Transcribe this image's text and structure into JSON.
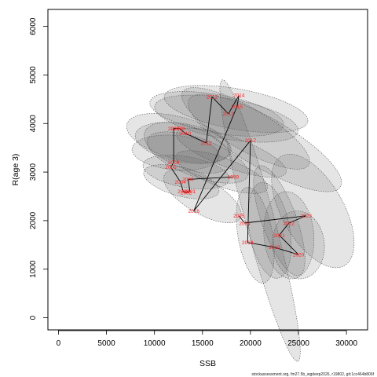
{
  "chart_data": {
    "type": "scatter",
    "title": "",
    "xlabel": "SSB",
    "ylabel": "R(age 3)",
    "xlim": [
      -1100,
      32200
    ],
    "ylim": [
      -250,
      6350
    ],
    "x_ticks": [
      0,
      5000,
      10000,
      15000,
      20000,
      25000,
      30000
    ],
    "y_ticks": [
      0,
      1000,
      2000,
      3000,
      4000,
      5000,
      6000
    ],
    "x_tick_labels": [
      "0",
      "5000",
      "10000",
      "15000",
      "20000",
      "25000",
      "30000"
    ],
    "y_tick_labels": [
      "0",
      "1000",
      "2000",
      "3000",
      "4000",
      "5000",
      "6000"
    ],
    "grid": false,
    "footer": "stockassessment.org, fm27.5b_wgdeep2026, r19802, git:1cc464b806f",
    "connect_points": true,
    "points": [
      {
        "year": "1999",
        "ssb": 18200,
        "rec": 2900
      },
      {
        "year": "2000",
        "ssb": 13500,
        "rec": 2850
      },
      {
        "year": "2001",
        "ssb": 13700,
        "rec": 2600
      },
      {
        "year": "2002",
        "ssb": 13300,
        "rec": 2580
      },
      {
        "year": "2003",
        "ssb": 13000,
        "rec": 2600
      },
      {
        "year": "2004",
        "ssb": 12700,
        "rec": 2800
      },
      {
        "year": "2005",
        "ssb": 11700,
        "rec": 3100
      },
      {
        "year": "2006",
        "ssb": 12000,
        "rec": 3200
      },
      {
        "year": "2007",
        "ssb": 12000,
        "rec": 3900
      },
      {
        "year": "2008",
        "ssb": 12300,
        "rec": 3900
      },
      {
        "year": "2009",
        "ssb": 12600,
        "rec": 3900
      },
      {
        "year": "2010",
        "ssb": 13200,
        "rec": 3800
      },
      {
        "year": "2011",
        "ssb": 15400,
        "rec": 3600
      },
      {
        "year": "2012",
        "ssb": 16000,
        "rec": 4550
      },
      {
        "year": "2013",
        "ssb": 17700,
        "rec": 4200
      },
      {
        "year": "2014",
        "ssb": 18800,
        "rec": 4580
      },
      {
        "year": "2015",
        "ssb": 18600,
        "rec": 4350
      },
      {
        "year": "2016",
        "ssb": 14100,
        "rec": 2200
      },
      {
        "year": "2017",
        "ssb": 20000,
        "rec": 3650
      },
      {
        "year": "2018",
        "ssb": 19700,
        "rec": 1550
      },
      {
        "year": "2019",
        "ssb": 22500,
        "rec": 1450
      },
      {
        "year": "2020",
        "ssb": 25000,
        "rec": 1300
      },
      {
        "year": "2021",
        "ssb": 23000,
        "rec": 1700
      },
      {
        "year": "2022",
        "ssb": 24000,
        "rec": 1950
      },
      {
        "year": "2023",
        "ssb": 25800,
        "rec": 2100
      },
      {
        "year": "2024",
        "ssb": 19400,
        "rec": 1950
      },
      {
        "year": "2025",
        "ssb": 18800,
        "rec": 2100
      }
    ],
    "line_order": [
      "2025",
      "2024",
      "2018",
      "2019",
      "2020",
      "2021",
      "2022",
      "2023"
    ],
    "uncertainty_ellipses": [
      {
        "cx": 12500,
        "cy": 3700,
        "rx": 2200,
        "ry": 1100,
        "angle": 75
      },
      {
        "cx": 13000,
        "cy": 3600,
        "rx": 2000,
        "ry": 1000,
        "angle": 80
      },
      {
        "cx": 13500,
        "cy": 3500,
        "rx": 2200,
        "ry": 950,
        "angle": 70
      },
      {
        "cx": 12200,
        "cy": 3400,
        "rx": 1800,
        "ry": 900,
        "angle": 85
      },
      {
        "cx": 13300,
        "cy": 3000,
        "rx": 1600,
        "ry": 900,
        "angle": 80
      },
      {
        "cx": 14500,
        "cy": 3300,
        "rx": 2000,
        "ry": 1100,
        "angle": 70
      },
      {
        "cx": 12800,
        "cy": 2800,
        "rx": 1500,
        "ry": 800,
        "angle": 75
      },
      {
        "cx": 16500,
        "cy": 4200,
        "rx": 2000,
        "ry": 1400,
        "angle": 80
      },
      {
        "cx": 17500,
        "cy": 4100,
        "rx": 2100,
        "ry": 1500,
        "angle": 80
      },
      {
        "cx": 18500,
        "cy": 4300,
        "rx": 2100,
        "ry": 1500,
        "angle": 80
      },
      {
        "cx": 19500,
        "cy": 3900,
        "rx": 2200,
        "ry": 1500,
        "angle": 60
      },
      {
        "cx": 18000,
        "cy": 3400,
        "rx": 1600,
        "ry": 1200,
        "angle": 70
      },
      {
        "cx": 17000,
        "cy": 3000,
        "rx": 1500,
        "ry": 1000,
        "angle": 70
      },
      {
        "cx": 21000,
        "cy": 2000,
        "rx": 1500,
        "ry": 3000,
        "angle": 15
      },
      {
        "cx": 22000,
        "cy": 1800,
        "rx": 2100,
        "ry": 1000,
        "angle": 10
      },
      {
        "cx": 24000,
        "cy": 1700,
        "rx": 2600,
        "ry": 900,
        "angle": 5
      },
      {
        "cx": 25000,
        "cy": 1500,
        "rx": 2700,
        "ry": 700,
        "angle": 5
      },
      {
        "cx": 26500,
        "cy": 2200,
        "rx": 3200,
        "ry": 1300,
        "angle": 30
      },
      {
        "cx": 23000,
        "cy": 2000,
        "rx": 1800,
        "ry": 1200,
        "angle": 20
      },
      {
        "cx": 20500,
        "cy": 1700,
        "rx": 1800,
        "ry": 1000,
        "angle": 10
      },
      {
        "cx": 15000,
        "cy": 2500,
        "rx": 1800,
        "ry": 900,
        "angle": 60
      },
      {
        "cx": 21500,
        "cy": 3600,
        "rx": 2600,
        "ry": 1800,
        "angle": 60
      }
    ]
  }
}
